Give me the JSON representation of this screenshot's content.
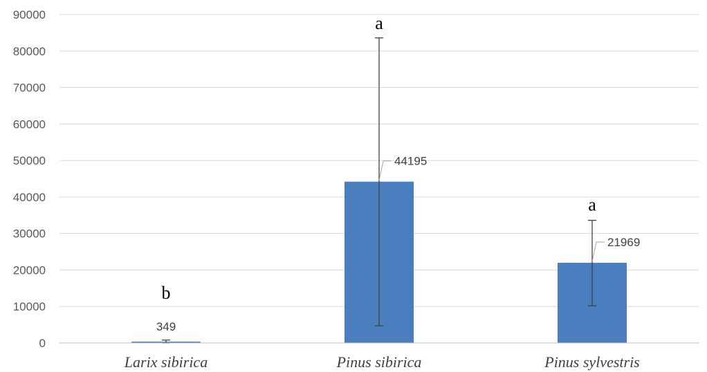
{
  "chart_data": {
    "type": "bar",
    "categories": [
      "Larix sibirica",
      "Pinus sibirica",
      "Pinus sylvestris"
    ],
    "values": [
      349,
      44195,
      21969
    ],
    "error_low": [
      0,
      4700,
      10200
    ],
    "error_high": [
      800,
      83600,
      33600
    ],
    "data_labels": [
      "349",
      "44195",
      "21969"
    ],
    "significance_letters": [
      "b",
      "a",
      "a"
    ],
    "ylim": [
      0,
      90000
    ],
    "yticks": [
      0,
      10000,
      20000,
      30000,
      40000,
      50000,
      60000,
      70000,
      80000,
      90000
    ],
    "ytick_labels": [
      "0",
      "10000",
      "20000",
      "30000",
      "40000",
      "50000",
      "60000",
      "70000",
      "80000",
      "90000"
    ],
    "bar_color": "#4a7ebf",
    "grid": true,
    "legend": "none",
    "title": "",
    "xlabel": "",
    "ylabel": ""
  }
}
